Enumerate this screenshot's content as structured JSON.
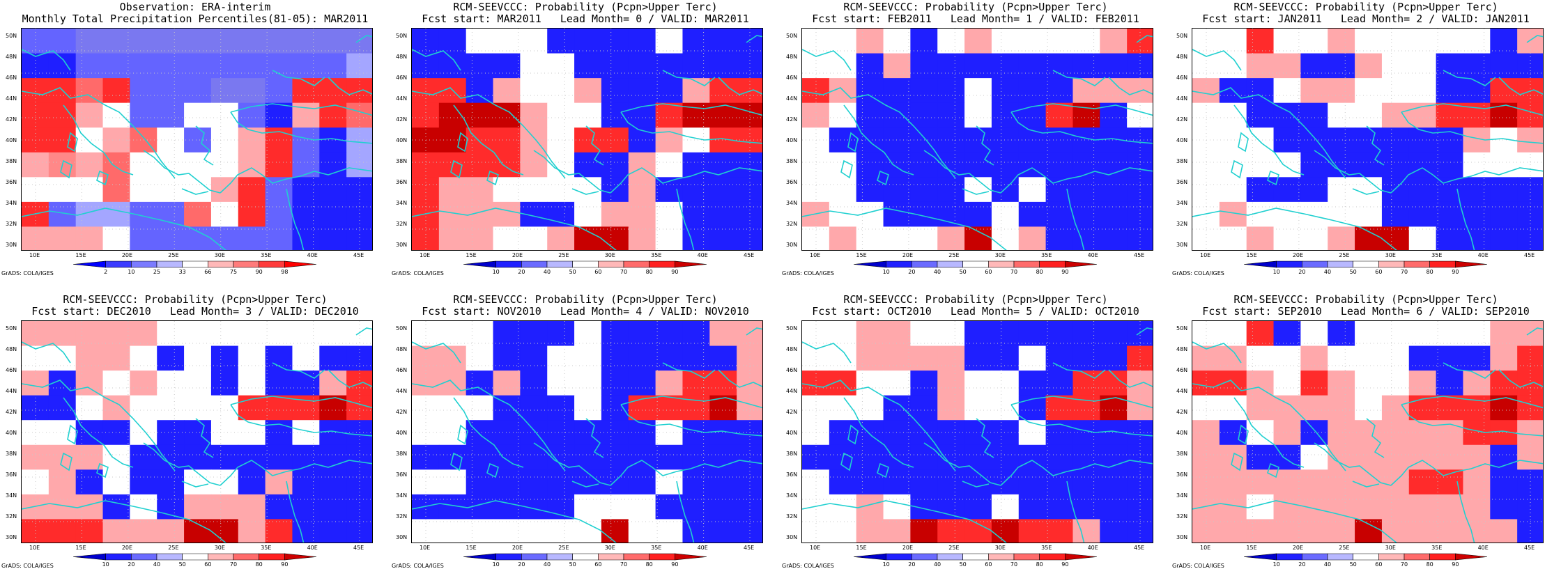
{
  "panels": [
    {
      "title_line1": "Observation: ERA-interim",
      "title_line2": "Monthly Total Precipitation Percentiles(81-05): MAR2011",
      "colorbar_kind": "percentile",
      "grid": [
        "bbOOOOOOOOOOO",
        "BBbbbbbbbbbbL",
        "RRrRbbbOObRRR",
        "RRp.bb..bBpRr",
        "RR.pr.b.pRbBL",
        "pPpr....pRbBL",
        "...r...pRbBBB",
        "RbLLbbr.RbBBB",
        "ppp.bbbbbbBBB"
      ]
    },
    {
      "title_line1": "RCM-SEEVCCC: Probability (Pcpn>Upper Terc)",
      "title_line2": "Fcst start: MAR2011   Lead Month= 0 / VALID: MAR2011",
      "colorbar_kind": "probability",
      "grid": [
        "BB...BBBB.BBB",
        "BBBB..BBBBBBB",
        "RRBp..pBBBpRR",
        "RDDDp..BBRDDD",
        "DDRRp.RRBp.RR",
        "RRRRp.BBp.BBB",
        "Rpp....BpBBBB",
        "RpppBB.pp.BBB",
        "Rpp..pDDp.BBB"
      ]
    },
    {
      "title_line1": "RCM-SEEVCCC: Probability (Pcpn>Upper Terc)",
      "title_line2": "Fcst start: FEB2011   Lead Month= 1 / VALID: FEB2011",
      "colorbar_kind": "probability",
      "grid": [
        "..p.B.p....pR",
        "..BpBBBBBBBBB",
        "RpBBBB.BBBppp",
        "p.BBBB.BBRDB.",
        ".BBBBBBBBBBBB",
        "..BBBBBBBBBBB",
        "..BBBB.B.BBBB",
        "p..BBBB.BBBBB",
        ".p...pD.pBBBB"
      ]
    },
    {
      "title_line1": "RCM-SEEVCCC: Probability (Pcpn>Upper Terc)",
      "title_line2": "Fcst start: JAN2011   Lead Month= 2 / VALID: JAN2011",
      "colorbar_kind": "probability",
      "grid": [
        "..R..p.....Bp",
        "..ppBBp..BBBB",
        "pBB.pp...BBRR",
        "..BBB..ppRRDR",
        "...BBBBBBBp.p",
        "....BBBBBB...",
        "..BBB..BBBBBB",
        ".p.....BBBBBB",
        "..p..pDD.BBBB"
      ]
    },
    {
      "title_line1": "RCM-SEEVCCC: Probability (Pcpn>Upper Terc)",
      "title_line2": "Fcst start: DEC2010   Lead Month= 3 / VALID: DEC2010",
      "colorbar_kind": "probability",
      "grid": [
        "ppppp........",
        "..pp.B.B.B.BB",
        "pBp.p..B.BBpR",
        "BB.p....RRRDR",
        "..BB.BB..B.BB",
        "ppp.BBBBBBBBB",
        ".pB.BB..BpBBB",
        "pppB.BpppBBBB",
        "RRRpppDDpRBBB"
      ]
    },
    {
      "title_line1": "RCM-SEEVCCC: Probability (Pcpn>Upper Terc)",
      "title_line2": "Fcst start: NOV2010   Lead Month= 4 / VALID: NOV2010",
      "colorbar_kind": "probability",
      "grid": [
        "...BBB.BBBBpp",
        "pp.BB..BBBBBp",
        "ppBpB..BBpRRp",
        "...BBB.BRRRDp",
        "..BBBBBBB.BBB",
        "BBBBBBBBBBBBB",
        "..BBBBBBB.BBB",
        "BBBBBB...BBBB",
        ".......D..BBB"
      ]
    },
    {
      "title_line1": "RCM-SEEVCCC: Probability (Pcpn>Upper Terc)",
      "title_line2": "Fcst start: OCT2010   Lead Month= 5 / VALID: OCT2010",
      "colorbar_kind": "probability",
      "grid": [
        "..pp..BBBBBBB",
        "..ppppBB.BBBR",
        "RR..Bp..BBRRp",
        "...BBp..BRRDp",
        ".BBBBBBB.BBBB",
        "BBBBBBBBBBBBB",
        ".BBBBBBBBBBBB",
        "..p.BBB.BBBBB",
        "..ppDRRDRRpBB"
      ]
    },
    {
      "title_line1": "RCM-SEEVCCC: Probability (Pcpn>Upper Terc)",
      "title_line2": "Fcst start: SEP2010   Lead Month= 6 / VALID: SEP2010",
      "colorbar_kind": "probability",
      "grid": [
        "..RB.B.....pp",
        "pp..p...BBBpR",
        "RRp.Rp..pBpRR",
        "..pppp.pRRRDR",
        "pB.pBpppppRRp",
        "ppBB.ppppppBp",
        "ppppppppRRpBB",
        "pp.ppppppppBB",
        "ppppppDpppppB"
      ]
    }
  ],
  "x_tick_labels": [
    "10E",
    "15E",
    "20E",
    "25E",
    "30E",
    "35E",
    "40E",
    "45E"
  ],
  "y_tick_labels": [
    "50N",
    "48N",
    "46N",
    "44N",
    "42N",
    "40N",
    "38N",
    "36N",
    "34N",
    "32N",
    "30N"
  ],
  "colorbar_percentile": {
    "labels": [
      "2",
      "10",
      "25",
      "33",
      "66",
      "75",
      "90",
      "98"
    ],
    "colors": [
      "#0000ff",
      "#3b3bff",
      "#7b7bff",
      "#b8b8ff",
      "#ffffff",
      "#ffb8b8",
      "#ff7b7b",
      "#ff3b3b",
      "#ff0000"
    ]
  },
  "colorbar_probability": {
    "labels": [
      "10",
      "20",
      "40",
      "50",
      "60",
      "70",
      "80",
      "90"
    ],
    "colors": [
      "#0000cc",
      "#2020ff",
      "#6b6bff",
      "#b8b8ff",
      "#ffffff",
      "#ffb8b8",
      "#ff6b6b",
      "#ff2020",
      "#cc0000"
    ]
  },
  "cell_colors": {
    "B": "#1f1fff",
    "b": "#6464ff",
    "O": "#7a78f0",
    "L": "#a4a6ff",
    ".": "#ffffff",
    "p": "#ffa8ab",
    "P": "#ff8888",
    "r": "#ff6a6a",
    "R": "#ff2b2b",
    "D": "#c80000"
  },
  "credit_text": "GrADS: COLA/IGES",
  "coast_color": "#20d0d0"
}
